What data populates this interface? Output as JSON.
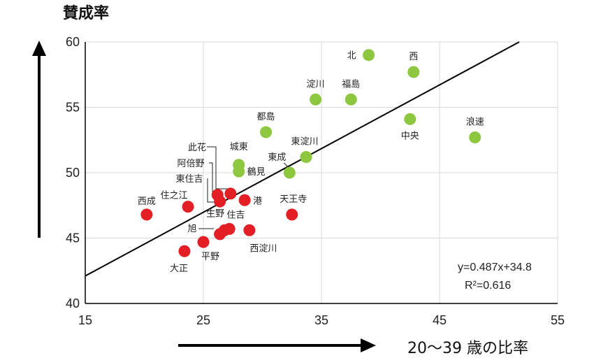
{
  "chart_data": {
    "type": "scatter",
    "title": "",
    "ylabel": "賛成率",
    "xlabel": "20〜39 歳の比率",
    "xlim": [
      15,
      55
    ],
    "ylim": [
      40,
      60
    ],
    "xticks": [
      15,
      25,
      35,
      45,
      55
    ],
    "yticks": [
      40,
      45,
      50,
      55,
      60
    ],
    "grid": true,
    "regression": {
      "slope": 0.487,
      "intercept": 34.8,
      "equation": "y=0.487x+34.8",
      "r2": "R²=0.616"
    },
    "colors": {
      "green": "#8dc63f",
      "red": "#e31e24",
      "line": "#000000",
      "grid": "#d9d9d9"
    },
    "points": [
      {
        "label": "北",
        "x": 39.0,
        "y": 59.0,
        "color": "green"
      },
      {
        "label": "西",
        "x": 42.8,
        "y": 57.7,
        "color": "green"
      },
      {
        "label": "淀川",
        "x": 34.5,
        "y": 55.6,
        "color": "green"
      },
      {
        "label": "福島",
        "x": 37.5,
        "y": 55.6,
        "color": "green"
      },
      {
        "label": "中央",
        "x": 42.5,
        "y": 54.1,
        "color": "green"
      },
      {
        "label": "浪速",
        "x": 48.0,
        "y": 52.7,
        "color": "green"
      },
      {
        "label": "都島",
        "x": 30.3,
        "y": 53.1,
        "color": "green"
      },
      {
        "label": "東淀川",
        "x": 33.7,
        "y": 51.2,
        "color": "green"
      },
      {
        "label": "城東",
        "x": 28.0,
        "y": 50.6,
        "color": "green"
      },
      {
        "label": "鶴見",
        "x": 28.0,
        "y": 50.1,
        "color": "green"
      },
      {
        "label": "東成",
        "x": 32.3,
        "y": 50.0,
        "color": "green"
      },
      {
        "label": "此花",
        "x": 27.3,
        "y": 48.4,
        "color": "red"
      },
      {
        "label": "阿倍野",
        "x": 26.2,
        "y": 48.3,
        "color": "red"
      },
      {
        "label": "東住吉",
        "x": 26.4,
        "y": 47.8,
        "color": "red"
      },
      {
        "label": "港",
        "x": 28.5,
        "y": 47.9,
        "color": "red"
      },
      {
        "label": "住之江",
        "x": 23.7,
        "y": 47.4,
        "color": "red"
      },
      {
        "label": "西成",
        "x": 20.2,
        "y": 46.8,
        "color": "red"
      },
      {
        "label": "天王寺",
        "x": 32.5,
        "y": 46.8,
        "color": "red"
      },
      {
        "label": "生野",
        "x": 27.2,
        "y": 45.7,
        "color": "red"
      },
      {
        "label": "住吉",
        "x": 26.8,
        "y": 45.6,
        "color": "red"
      },
      {
        "label": "旭",
        "x": 26.4,
        "y": 45.3,
        "color": "red"
      },
      {
        "label": "西淀川",
        "x": 28.9,
        "y": 45.6,
        "color": "red"
      },
      {
        "label": "平野",
        "x": 25.0,
        "y": 44.7,
        "color": "red"
      },
      {
        "label": "大正",
        "x": 23.4,
        "y": 44.0,
        "color": "red"
      }
    ]
  }
}
